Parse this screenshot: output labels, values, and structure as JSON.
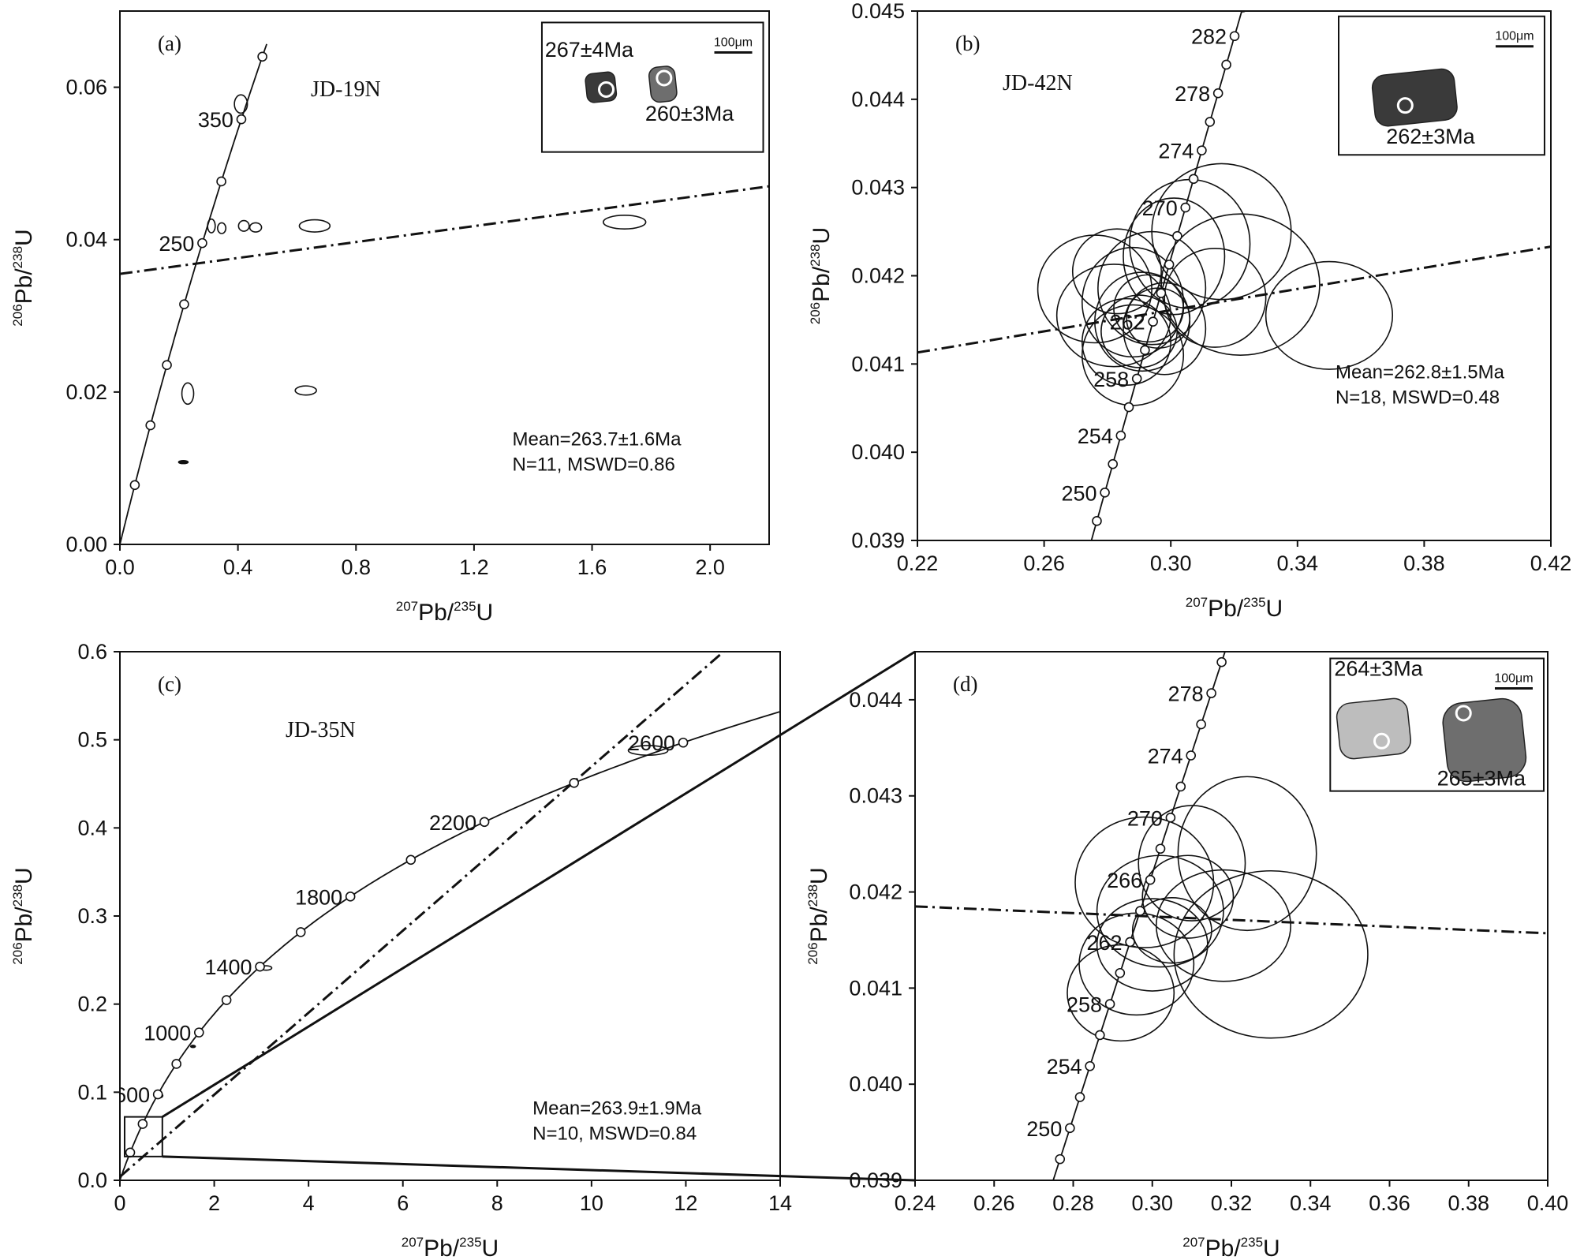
{
  "colors": {
    "ink": "#111111",
    "background": "#ffffff",
    "grain_dark": "#3a3a3a",
    "grain_mid": "#6e6e6e",
    "grain_light": "#bdbdbd"
  },
  "chart_data": [
    {
      "id": "a",
      "type": "scatter",
      "panel_label": "(a)",
      "sample": "JD-19N",
      "xlabel": {
        "pre": "207",
        "base": "Pb/",
        "mid": "235",
        "end": "U"
      },
      "ylabel": {
        "pre": "206",
        "base": "Pb/",
        "mid": "238",
        "end": "U"
      },
      "xlim": [
        0,
        2.2
      ],
      "ylim": [
        0,
        0.07
      ],
      "xticks": [
        0.0,
        0.4,
        0.8,
        1.2,
        1.6,
        2.0
      ],
      "xtick_labels": [
        "0.0",
        "0.4",
        "0.8",
        "1.2",
        "1.6",
        "2.0"
      ],
      "yticks": [
        0.0,
        0.02,
        0.04,
        0.06
      ],
      "ytick_labels": [
        "0.00",
        "0.02",
        "0.04",
        "0.06"
      ],
      "concordia": {
        "t_min": 0,
        "t_max": 410,
        "markers": [
          50,
          100,
          150,
          200,
          250,
          300,
          350,
          400
        ],
        "labels": [
          {
            "age": 350,
            "text": "350",
            "side": "left"
          },
          {
            "age": 250,
            "text": "250",
            "side": "left"
          }
        ]
      },
      "discordia": [
        [
          0,
          0.0355
        ],
        [
          2.2,
          0.047
        ]
      ],
      "ellipses": [
        {
          "x": 0.41,
          "y": 0.0578,
          "rx": 0.022,
          "ry": 0.0012
        },
        {
          "x": 0.31,
          "y": 0.0418,
          "rx": 0.013,
          "ry": 0.0009
        },
        {
          "x": 0.345,
          "y": 0.0415,
          "rx": 0.014,
          "ry": 0.0007
        },
        {
          "x": 0.42,
          "y": 0.0418,
          "rx": 0.018,
          "ry": 0.0007
        },
        {
          "x": 0.46,
          "y": 0.0416,
          "rx": 0.02,
          "ry": 0.0006
        },
        {
          "x": 0.66,
          "y": 0.0418,
          "rx": 0.052,
          "ry": 0.0008
        },
        {
          "x": 1.71,
          "y": 0.0423,
          "rx": 0.072,
          "ry": 0.0009
        },
        {
          "x": 0.23,
          "y": 0.0198,
          "rx": 0.02,
          "ry": 0.0014
        },
        {
          "x": 0.63,
          "y": 0.0202,
          "rx": 0.036,
          "ry": 0.0006
        },
        {
          "x": 0.215,
          "y": 0.0108,
          "rx": 0.016,
          "ry": 0.0002,
          "filled": true
        }
      ],
      "annotation": {
        "lines": [
          "Mean=263.7±1.6Ma",
          "N=11, MSWD=0.86"
        ],
        "x": 1.33,
        "y": 0.0097
      },
      "inset": {
        "x0": 1.43,
        "x1": 2.18,
        "y0": 0.0685,
        "y1": 0.0515,
        "scale_bar": "100μm",
        "ages": [
          {
            "text": "267±4Ma",
            "x": 1.44,
            "y": 0.064
          },
          {
            "text": "260±3Ma",
            "x": 1.78,
            "y": 0.0556
          }
        ],
        "grains": [
          {
            "x": 1.63,
            "y": 0.06,
            "w": 0.1,
            "h": 0.0038,
            "spot_dx": 0.018,
            "spot_dy": -0.0003,
            "tone": "dark"
          },
          {
            "x": 1.84,
            "y": 0.0604,
            "w": 0.088,
            "h": 0.0046,
            "spot_dx": 0.004,
            "spot_dy": 0.0008,
            "tone": "mid"
          }
        ]
      }
    },
    {
      "id": "b",
      "type": "scatter",
      "panel_label": "(b)",
      "sample": "JD-42N",
      "xlabel": {
        "pre": "207",
        "base": "Pb/",
        "mid": "235",
        "end": "U"
      },
      "ylabel": {
        "pre": "206",
        "base": "Pb/",
        "mid": "238",
        "end": "U"
      },
      "xlim": [
        0.22,
        0.42
      ],
      "ylim": [
        0.039,
        0.045
      ],
      "xticks": [
        0.22,
        0.26,
        0.3,
        0.34,
        0.38,
        0.42
      ],
      "xtick_labels": [
        "0.22",
        "0.26",
        "0.30",
        "0.34",
        "0.38",
        "0.42"
      ],
      "yticks": [
        0.039,
        0.04,
        0.041,
        0.042,
        0.043,
        0.044,
        0.045
      ],
      "ytick_labels": [
        "0.039",
        "0.040",
        "0.041",
        "0.042",
        "0.043",
        "0.044",
        "0.045"
      ],
      "concordia": {
        "t_min": 244,
        "t_max": 288,
        "markers": [
          246,
          248,
          250,
          252,
          254,
          256,
          258,
          260,
          262,
          264,
          266,
          268,
          270,
          272,
          274,
          276,
          278,
          280,
          282,
          284
        ],
        "labels": [
          {
            "age": 282,
            "text": "282",
            "side": "left"
          },
          {
            "age": 278,
            "text": "278",
            "side": "left"
          },
          {
            "age": 274,
            "text": "274",
            "side": "left"
          },
          {
            "age": 270,
            "text": "270",
            "side": "left"
          },
          {
            "age": 262,
            "text": "262",
            "side": "left"
          },
          {
            "age": 258,
            "text": "258",
            "side": "left"
          },
          {
            "age": 254,
            "text": "254",
            "side": "left"
          },
          {
            "age": 250,
            "text": "250",
            "side": "left"
          }
        ]
      },
      "discordia": [
        [
          0.22,
          0.04113
        ],
        [
          0.42,
          0.04233
        ]
      ],
      "ellipses": [
        {
          "x": 0.282,
          "y": 0.04155,
          "rx": 0.018,
          "ry": 0.00058
        },
        {
          "x": 0.288,
          "y": 0.0417,
          "rx": 0.016,
          "ry": 0.00062
        },
        {
          "x": 0.291,
          "y": 0.04148,
          "rx": 0.015,
          "ry": 0.00056
        },
        {
          "x": 0.294,
          "y": 0.04186,
          "rx": 0.017,
          "ry": 0.00064
        },
        {
          "x": 0.286,
          "y": 0.04125,
          "rx": 0.014,
          "ry": 0.00049
        },
        {
          "x": 0.298,
          "y": 0.0414,
          "rx": 0.013,
          "ry": 0.00052
        },
        {
          "x": 0.276,
          "y": 0.04185,
          "rx": 0.018,
          "ry": 0.00061
        },
        {
          "x": 0.301,
          "y": 0.04222,
          "rx": 0.016,
          "ry": 0.00066
        },
        {
          "x": 0.306,
          "y": 0.04236,
          "rx": 0.019,
          "ry": 0.00073
        },
        {
          "x": 0.293,
          "y": 0.04163,
          "rx": 0.011,
          "ry": 0.00038
        },
        {
          "x": 0.29,
          "y": 0.04137,
          "rx": 0.012,
          "ry": 0.00041
        },
        {
          "x": 0.296,
          "y": 0.04152,
          "rx": 0.01,
          "ry": 0.00034
        },
        {
          "x": 0.283,
          "y": 0.04205,
          "rx": 0.014,
          "ry": 0.00048
        },
        {
          "x": 0.288,
          "y": 0.0411,
          "rx": 0.016,
          "ry": 0.00057
        },
        {
          "x": 0.316,
          "y": 0.0425,
          "rx": 0.022,
          "ry": 0.00077
        },
        {
          "x": 0.322,
          "y": 0.0419,
          "rx": 0.025,
          "ry": 0.0008
        },
        {
          "x": 0.314,
          "y": 0.04175,
          "rx": 0.016,
          "ry": 0.00056
        },
        {
          "x": 0.35,
          "y": 0.04155,
          "rx": 0.02,
          "ry": 0.00061
        }
      ],
      "annotation": {
        "lines": [
          "Mean=262.8±1.5Ma",
          "N=18, MSWD=0.48"
        ],
        "x": 0.352,
        "y": 0.04055
      },
      "inset": {
        "x0": 0.353,
        "x1": 0.418,
        "y0": 0.04494,
        "y1": 0.04337,
        "scale_bar": "100μm",
        "ages": [
          {
            "text": "262±3Ma",
            "x": 0.368,
            "y": 0.0435
          }
        ],
        "grains": [
          {
            "x": 0.377,
            "y": 0.04402,
            "w": 0.026,
            "h": 0.00058,
            "spot_dx": -0.003,
            "spot_dy": -9e-05,
            "tone": "dark"
          }
        ]
      }
    },
    {
      "id": "c",
      "type": "scatter",
      "panel_label": "(c)",
      "sample": "JD-35N",
      "xlabel": {
        "pre": "207",
        "base": "Pb/",
        "mid": "235",
        "end": "U"
      },
      "ylabel": {
        "pre": "206",
        "base": "Pb/",
        "mid": "238",
        "end": "U"
      },
      "xlim": [
        0,
        14
      ],
      "ylim": [
        0,
        0.6
      ],
      "xticks": [
        0,
        2,
        4,
        6,
        8,
        10,
        12,
        14
      ],
      "xtick_labels": [
        "0",
        "2",
        "4",
        "6",
        "8",
        "10",
        "12",
        "14"
      ],
      "yticks": [
        0.0,
        0.1,
        0.2,
        0.3,
        0.4,
        0.5,
        0.6
      ],
      "ytick_labels": [
        "0.0",
        "0.1",
        "0.2",
        "0.3",
        "0.4",
        "0.5",
        "0.6"
      ],
      "concordia": {
        "t_min": 0,
        "t_max": 2850,
        "markers": [
          200,
          400,
          600,
          800,
          1000,
          1200,
          1400,
          1600,
          1800,
          2000,
          2200,
          2400,
          2600
        ],
        "labels": [
          {
            "age": 600,
            "text": "600",
            "side": "left"
          },
          {
            "age": 1000,
            "text": "1000",
            "side": "left"
          },
          {
            "age": 1400,
            "text": "1400",
            "side": "left"
          },
          {
            "age": 1800,
            "text": "1800",
            "side": "left"
          },
          {
            "age": 2200,
            "text": "2200",
            "side": "left"
          },
          {
            "age": 2600,
            "text": "2600",
            "side": "left"
          }
        ]
      },
      "discordia": [
        [
          0.0,
          0.004
        ],
        [
          12.8,
          0.6
        ]
      ],
      "ellipses": [
        {
          "x": 11.2,
          "y": 0.488,
          "rx": 0.42,
          "ry": 0.0055
        },
        {
          "x": 3.1,
          "y": 0.241,
          "rx": 0.12,
          "ry": 0.0025
        },
        {
          "x": 1.55,
          "y": 0.152,
          "rx": 0.05,
          "ry": 0.0012,
          "filled": true
        },
        {
          "x": 0.85,
          "y": 0.096,
          "rx": 0.06,
          "ry": 0.0022
        }
      ],
      "zoom_box": {
        "x0": 0.1,
        "y0": 0.027,
        "x1": 0.9,
        "y1": 0.072
      },
      "annotation": {
        "lines": [
          "Mean=263.9±1.9Ma",
          "N=10, MSWD=0.84"
        ],
        "x": 8.75,
        "y": 0.046
      }
    },
    {
      "id": "d",
      "type": "scatter",
      "panel_label": "(d)",
      "xlabel": {
        "pre": "207",
        "base": "Pb/",
        "mid": "235",
        "end": "U"
      },
      "ylabel": {
        "pre": "206",
        "base": "Pb/",
        "mid": "238",
        "end": "U"
      },
      "xlim": [
        0.24,
        0.4
      ],
      "ylim": [
        0.039,
        0.0445
      ],
      "xticks": [
        0.24,
        0.26,
        0.28,
        0.3,
        0.32,
        0.34,
        0.36,
        0.38,
        0.4
      ],
      "xtick_labels": [
        "0.24",
        "0.26",
        "0.28",
        "0.30",
        "0.32",
        "0.34",
        "0.36",
        "0.38",
        "0.40"
      ],
      "yticks": [
        0.039,
        0.04,
        0.041,
        0.042,
        0.043,
        0.044
      ],
      "ytick_labels": [
        "0.039",
        "0.040",
        "0.041",
        "0.042",
        "0.043",
        "0.044"
      ],
      "concordia": {
        "t_min": 244,
        "t_max": 282,
        "markers": [
          246,
          248,
          250,
          252,
          254,
          256,
          258,
          260,
          262,
          264,
          266,
          268,
          270,
          272,
          274,
          276,
          278,
          280
        ],
        "labels": [
          {
            "age": 278,
            "text": "278",
            "side": "left"
          },
          {
            "age": 274,
            "text": "274",
            "side": "left"
          },
          {
            "age": 270,
            "text": "270",
            "side": "left"
          },
          {
            "age": 266,
            "text": "266",
            "side": "left"
          },
          {
            "age": 262,
            "text": "262",
            "side": "left"
          },
          {
            "age": 258,
            "text": "258",
            "side": "left"
          },
          {
            "age": 254,
            "text": "254",
            "side": "left"
          },
          {
            "age": 250,
            "text": "250",
            "side": "left"
          }
        ]
      },
      "discordia": [
        [
          0.24,
          0.04185
        ],
        [
          0.4,
          0.04157
        ]
      ],
      "ellipses": [
        {
          "x": 0.298,
          "y": 0.0421,
          "rx": 0.0175,
          "ry": 0.00068
        },
        {
          "x": 0.302,
          "y": 0.0418,
          "rx": 0.016,
          "ry": 0.00058
        },
        {
          "x": 0.3,
          "y": 0.04145,
          "rx": 0.014,
          "ry": 0.00048
        },
        {
          "x": 0.31,
          "y": 0.0423,
          "rx": 0.0135,
          "ry": 0.0006
        },
        {
          "x": 0.296,
          "y": 0.04125,
          "rx": 0.0145,
          "ry": 0.00053
        },
        {
          "x": 0.309,
          "y": 0.04195,
          "rx": 0.0115,
          "ry": 0.00043
        },
        {
          "x": 0.305,
          "y": 0.0416,
          "rx": 0.01,
          "ry": 0.00034
        },
        {
          "x": 0.318,
          "y": 0.04165,
          "rx": 0.017,
          "ry": 0.00058
        },
        {
          "x": 0.324,
          "y": 0.0424,
          "rx": 0.0175,
          "ry": 0.0008
        },
        {
          "x": 0.33,
          "y": 0.04135,
          "rx": 0.0245,
          "ry": 0.00087
        },
        {
          "x": 0.292,
          "y": 0.04095,
          "rx": 0.0135,
          "ry": 0.0005
        }
      ],
      "annotation": null,
      "inset": {
        "x0": 0.345,
        "x1": 0.399,
        "y0": 0.04443,
        "y1": 0.04305,
        "scale_bar": "100μm",
        "ages": [
          {
            "text": "264±3Ma",
            "x": 0.346,
            "y": 0.04425
          },
          {
            "text": "265±3Ma",
            "x": 0.372,
            "y": 0.04311
          }
        ],
        "grains": [
          {
            "x": 0.356,
            "y": 0.0437,
            "w": 0.018,
            "h": 0.00058,
            "spot_dx": 0.002,
            "spot_dy": -0.00013,
            "tone": "light"
          },
          {
            "x": 0.384,
            "y": 0.04358,
            "w": 0.02,
            "h": 0.00082,
            "spot_dx": -0.0053,
            "spot_dy": 0.00028,
            "tone": "mid"
          }
        ]
      }
    }
  ]
}
